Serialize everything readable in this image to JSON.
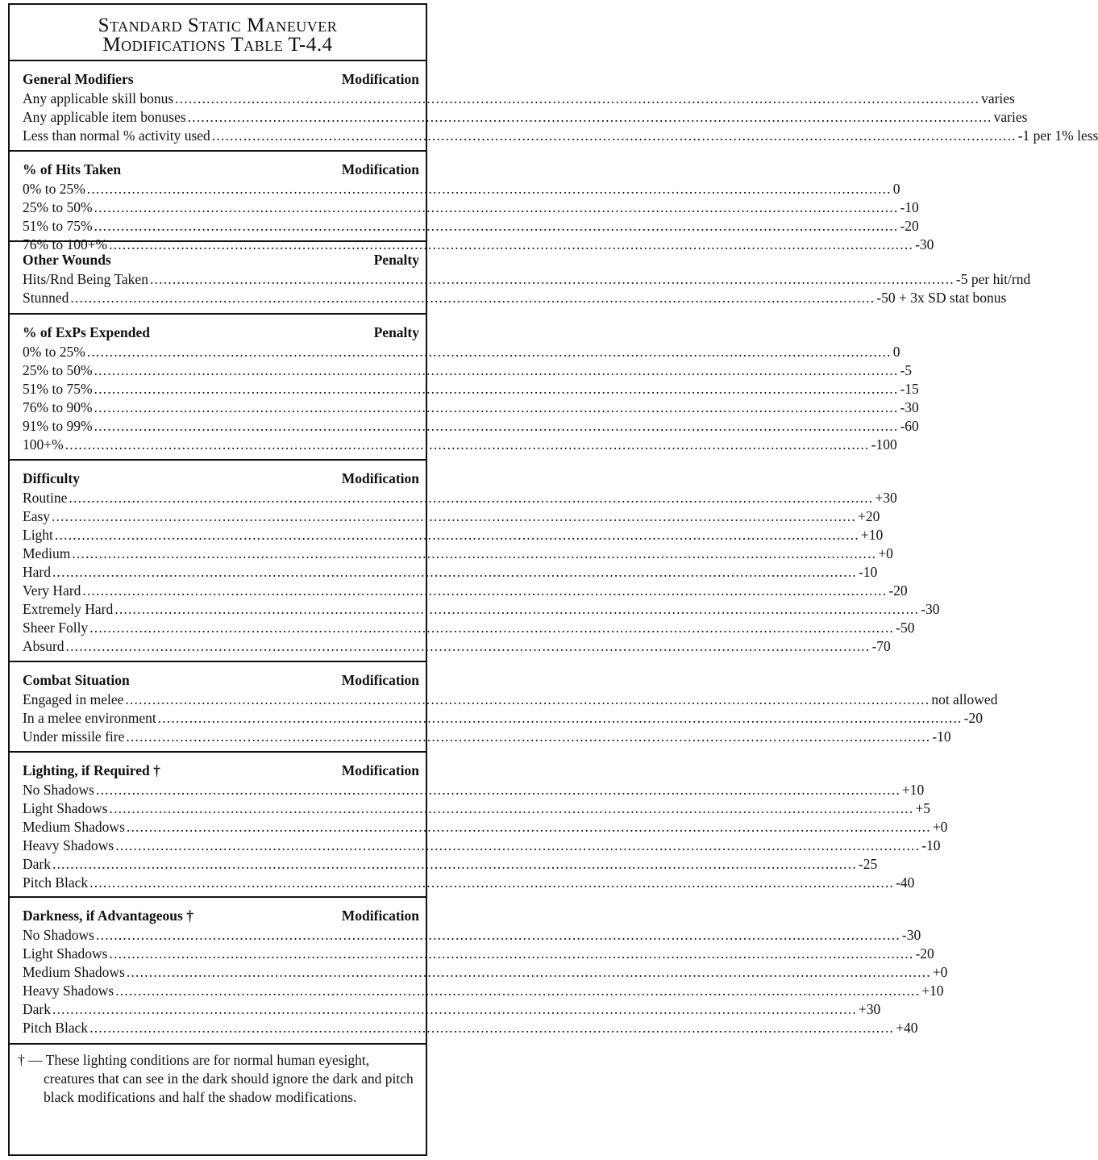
{
  "title": [
    "Standard Static Maneuver",
    "Modifications Table  T-4.4"
  ],
  "sections": [
    {
      "heading": "General Modifiers",
      "column": "Modification",
      "rows": [
        [
          "Any applicable skill bonus",
          "varies"
        ],
        [
          "Any applicable item bonuses",
          "varies"
        ],
        [
          "Less than normal % activity used",
          "-1 per 1% less"
        ]
      ]
    },
    {
      "heading": "% of Hits Taken",
      "column": "Modification",
      "rows": [
        [
          "0% to 25%",
          "0"
        ],
        [
          "25% to 50%",
          "-10"
        ],
        [
          "51% to 75%",
          "-20"
        ],
        [
          "76% to 100+%",
          "-30"
        ]
      ]
    },
    {
      "heading": "Other Wounds",
      "column": "Penalty",
      "rows": [
        [
          "Hits/Rnd Being Taken",
          "-5 per hit/rnd"
        ],
        [
          "Stunned",
          "-50 + 3x SD stat bonus"
        ]
      ]
    },
    {
      "heading": "% of ExPs Expended",
      "column": "Penalty",
      "rows": [
        [
          "0% to 25%",
          "0"
        ],
        [
          "25% to 50%",
          "-5"
        ],
        [
          "51% to 75%",
          "-15"
        ],
        [
          "76% to 90%",
          "-30"
        ],
        [
          "91% to 99%",
          "-60"
        ],
        [
          "100+%",
          "-100"
        ]
      ]
    },
    {
      "heading": "Difficulty",
      "column": "Modification",
      "rows": [
        [
          "Routine",
          "+30"
        ],
        [
          "Easy",
          "+20"
        ],
        [
          "Light",
          "+10"
        ],
        [
          "Medium",
          "+0"
        ],
        [
          "Hard",
          "-10"
        ],
        [
          "Very Hard",
          "-20"
        ],
        [
          "Extremely Hard",
          "-30"
        ],
        [
          "Sheer Folly",
          "-50"
        ],
        [
          "Absurd",
          "-70"
        ]
      ]
    },
    {
      "heading": "Combat Situation",
      "column": "Modification",
      "rows": [
        [
          "Engaged in melee",
          "not allowed"
        ],
        [
          "In a melee environment",
          "-20"
        ],
        [
          "Under missile fire",
          "-10"
        ]
      ]
    },
    {
      "heading": "Lighting, if Required †",
      "column": "Modification",
      "rows": [
        [
          "No Shadows",
          "+10"
        ],
        [
          "Light Shadows",
          "+5"
        ],
        [
          "Medium Shadows",
          "+0"
        ],
        [
          "Heavy Shadows",
          "-10"
        ],
        [
          "Dark",
          "-25"
        ],
        [
          "Pitch Black",
          "-40"
        ]
      ]
    },
    {
      "heading": "Darkness, if Advantageous †",
      "column": "Modification",
      "rows": [
        [
          "No Shadows",
          "-30"
        ],
        [
          "Light Shadows",
          "-20"
        ],
        [
          "Medium Shadows",
          "+0"
        ],
        [
          "Heavy Shadows",
          "+10"
        ],
        [
          "Dark",
          "+30"
        ],
        [
          "Pitch Black",
          "+40"
        ]
      ]
    }
  ],
  "footnote": "† — These lighting conditions are for normal human eyesight, creatures that can see in the dark should ignore the dark and pitch black modifications and half the shadow modifications."
}
